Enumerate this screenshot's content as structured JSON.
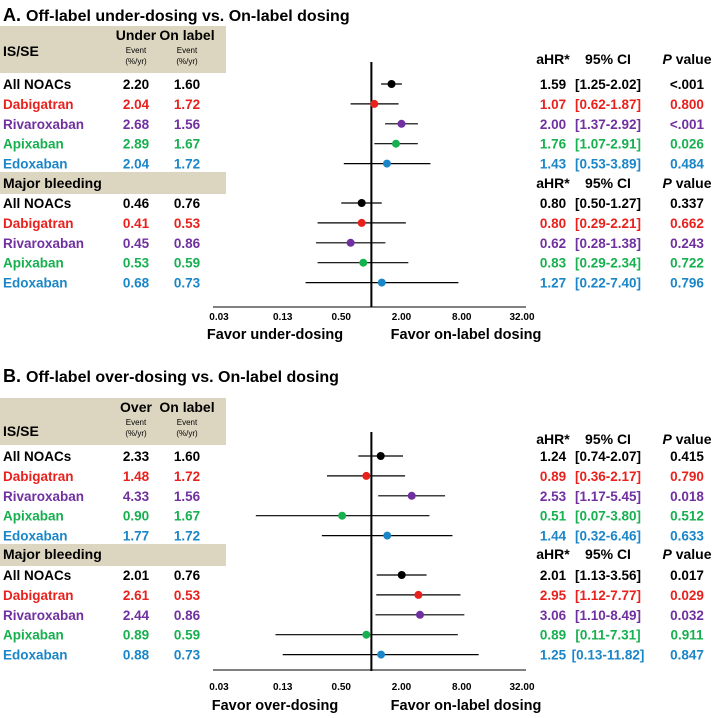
{
  "colors": {
    "all": "#000000",
    "dabigatran": "#e8211d",
    "rivaroxaban": "#7030a0",
    "apixaban": "#17b04f",
    "edoxaban": "#1a86c8",
    "section_band": "#dcd6c1"
  },
  "chart_data": [
    {
      "type": "forest",
      "title": "Off-label under-dosing vs. On-label dosing",
      "panel_label": "A.",
      "x_scale": "log2",
      "xlim": [
        0.03,
        32
      ],
      "ticks": [
        0.03,
        0.13,
        0.5,
        2,
        8,
        32
      ],
      "tick_labels": [
        "0.03",
        "0.13",
        "0.50",
        "2.00",
        "8.00",
        "32.00"
      ],
      "reference_line": 1,
      "favor_left": "Favor under-dosing",
      "favor_right": "Favor on-label dosing",
      "col1_header": "Under",
      "col2_header": "On label",
      "event_unit": "Event",
      "event_unit2": "(%/yr)",
      "stats_headers": {
        "ahr": "aHR*",
        "ci": "95% CI",
        "p_italic": "P",
        "p_rest": " value"
      },
      "sections": [
        {
          "name": "IS/SE",
          "rows": [
            {
              "drug": "All NOACs",
              "color_key": "all",
              "ev1": "2.20",
              "ev2": "1.60",
              "hr": 1.59,
              "lo": 1.25,
              "hi": 2.02,
              "hr_text": "1.59",
              "ci_text": "[1.25-2.02]",
              "p_text": "<.001"
            },
            {
              "drug": "Dabigatran",
              "color_key": "dabigatran",
              "ev1": "2.04",
              "ev2": "1.72",
              "hr": 1.07,
              "lo": 0.62,
              "hi": 1.87,
              "hr_text": "1.07",
              "ci_text": "[0.62-1.87]",
              "p_text": "0.800"
            },
            {
              "drug": "Rivaroxaban",
              "color_key": "rivaroxaban",
              "ev1": "2.68",
              "ev2": "1.56",
              "hr": 2.0,
              "lo": 1.37,
              "hi": 2.92,
              "hr_text": "2.00",
              "ci_text": "[1.37-2.92]",
              "p_text": "<.001"
            },
            {
              "drug": "Apixaban",
              "color_key": "apixaban",
              "ev1": "2.89",
              "ev2": "1.67",
              "hr": 1.76,
              "lo": 1.07,
              "hi": 2.91,
              "hr_text": "1.76",
              "ci_text": "[1.07-2.91]",
              "p_text": "0.026"
            },
            {
              "drug": "Edoxaban",
              "color_key": "edoxaban",
              "ev1": "2.04",
              "ev2": "1.72",
              "hr": 1.43,
              "lo": 0.53,
              "hi": 3.89,
              "hr_text": "1.43",
              "ci_text": "[0.53-3.89]",
              "p_text": "0.484"
            }
          ]
        },
        {
          "name": "Major bleeding",
          "rows": [
            {
              "drug": "All NOACs",
              "color_key": "all",
              "ev1": "0.46",
              "ev2": "0.76",
              "hr": 0.8,
              "lo": 0.5,
              "hi": 1.27,
              "hr_text": "0.80",
              "ci_text": "[0.50-1.27]",
              "p_text": "0.337"
            },
            {
              "drug": "Dabigatran",
              "color_key": "dabigatran",
              "ev1": "0.41",
              "ev2": "0.53",
              "hr": 0.8,
              "lo": 0.29,
              "hi": 2.21,
              "hr_text": "0.80",
              "ci_text": "[0.29-2.21]",
              "p_text": "0.662"
            },
            {
              "drug": "Rivaroxaban",
              "color_key": "rivaroxaban",
              "ev1": "0.45",
              "ev2": "0.86",
              "hr": 0.62,
              "lo": 0.28,
              "hi": 1.38,
              "hr_text": "0.62",
              "ci_text": "[0.28-1.38]",
              "p_text": "0.243"
            },
            {
              "drug": "Apixaban",
              "color_key": "apixaban",
              "ev1": "0.53",
              "ev2": "0.59",
              "hr": 0.83,
              "lo": 0.29,
              "hi": 2.34,
              "hr_text": "0.83",
              "ci_text": "[0.29-2.34]",
              "p_text": "0.722"
            },
            {
              "drug": "Edoxaban",
              "color_key": "edoxaban",
              "ev1": "0.68",
              "ev2": "0.73",
              "hr": 1.27,
              "lo": 0.22,
              "hi": 7.4,
              "hr_text": "1.27",
              "ci_text": "[0.22-7.40]",
              "p_text": "0.796"
            }
          ]
        }
      ]
    },
    {
      "type": "forest",
      "title": "Off-label over-dosing vs. On-label dosing",
      "panel_label": "B.",
      "x_scale": "log2",
      "xlim": [
        0.03,
        32
      ],
      "ticks": [
        0.03,
        0.13,
        0.5,
        2,
        8,
        32
      ],
      "tick_labels": [
        "0.03",
        "0.13",
        "0.50",
        "2.00",
        "8.00",
        "32.00"
      ],
      "reference_line": 1,
      "favor_left": "Favor over-dosing",
      "favor_right": "Favor on-label dosing",
      "col1_header": "Over",
      "col2_header": "On label",
      "event_unit": "Event",
      "event_unit2": "(%/yr)",
      "stats_headers": {
        "ahr": "aHR*",
        "ci": "95% CI",
        "p_italic": "P",
        "p_rest": " value"
      },
      "sections": [
        {
          "name": "IS/SE",
          "rows": [
            {
              "drug": "All NOACs",
              "color_key": "all",
              "ev1": "2.33",
              "ev2": "1.60",
              "hr": 1.24,
              "lo": 0.74,
              "hi": 2.07,
              "hr_text": "1.24",
              "ci_text": "[0.74-2.07]",
              "p_text": "0.415"
            },
            {
              "drug": "Dabigatran",
              "color_key": "dabigatran",
              "ev1": "1.48",
              "ev2": "1.72",
              "hr": 0.89,
              "lo": 0.36,
              "hi": 2.17,
              "hr_text": "0.89",
              "ci_text": "[0.36-2.17]",
              "p_text": "0.790"
            },
            {
              "drug": "Rivaroxaban",
              "color_key": "rivaroxaban",
              "ev1": "4.33",
              "ev2": "1.56",
              "hr": 2.53,
              "lo": 1.17,
              "hi": 5.45,
              "hr_text": "2.53",
              "ci_text": "[1.17-5.45]",
              "p_text": "0.018"
            },
            {
              "drug": "Apixaban",
              "color_key": "apixaban",
              "ev1": "0.90",
              "ev2": "1.67",
              "hr": 0.51,
              "lo": 0.07,
              "hi": 3.8,
              "hr_text": "0.51",
              "ci_text": "[0.07-3.80]",
              "p_text": "0.512"
            },
            {
              "drug": "Edoxaban",
              "color_key": "edoxaban",
              "ev1": "1.77",
              "ev2": "1.72",
              "hr": 1.44,
              "lo": 0.32,
              "hi": 6.46,
              "hr_text": "1.44",
              "ci_text": "[0.32-6.46]",
              "p_text": "0.633"
            }
          ]
        },
        {
          "name": "Major bleeding",
          "rows": [
            {
              "drug": "All NOACs",
              "color_key": "all",
              "ev1": "2.01",
              "ev2": "0.76",
              "hr": 2.01,
              "lo": 1.13,
              "hi": 3.56,
              "hr_text": "2.01",
              "ci_text": "[1.13-3.56]",
              "p_text": "0.017"
            },
            {
              "drug": "Dabigatran",
              "color_key": "dabigatran",
              "ev1": "2.61",
              "ev2": "0.53",
              "hr": 2.95,
              "lo": 1.12,
              "hi": 7.77,
              "hr_text": "2.95",
              "ci_text": "[1.12-7.77]",
              "p_text": "0.029"
            },
            {
              "drug": "Rivaroxaban",
              "color_key": "rivaroxaban",
              "ev1": "2.44",
              "ev2": "0.86",
              "hr": 3.06,
              "lo": 1.1,
              "hi": 8.49,
              "hr_text": "3.06",
              "ci_text": "[1.10-8.49]",
              "p_text": "0.032"
            },
            {
              "drug": "Apixaban",
              "color_key": "apixaban",
              "ev1": "0.89",
              "ev2": "0.59",
              "hr": 0.89,
              "lo": 0.11,
              "hi": 7.31,
              "hr_text": "0.89",
              "ci_text": "[0.11-7.31]",
              "p_text": "0.911"
            },
            {
              "drug": "Edoxaban",
              "color_key": "edoxaban",
              "ev1": "0.88",
              "ev2": "0.73",
              "hr": 1.25,
              "lo": 0.13,
              "hi": 11.82,
              "hr_text": "1.25",
              "ci_text": "[0.13-11.82]",
              "p_text": "0.847"
            }
          ]
        }
      ]
    }
  ]
}
